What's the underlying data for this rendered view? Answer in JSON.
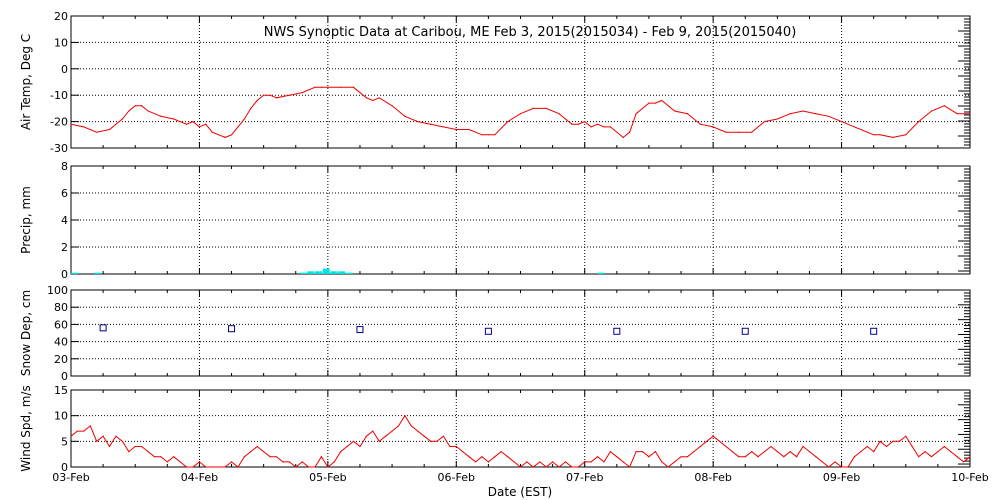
{
  "chart_data": {
    "type": "line",
    "title": "NWS Synoptic Data at Caribou, ME   Feb  3, 2015(2015034) - Feb  9, 2015(2015040)",
    "xlabel": "Date (EST)",
    "x_ticks": [
      "03-Feb",
      "04-Feb",
      "05-Feb",
      "06-Feb",
      "07-Feb",
      "08-Feb",
      "09-Feb",
      "10-Feb"
    ],
    "x_range_days": [
      0,
      7
    ],
    "colors": {
      "air_temp": "#ee0000",
      "precip": "#00e5e5",
      "snow": "#00008b",
      "wind": "#ee0000",
      "grid": "#000000"
    },
    "panels": [
      {
        "id": "air_temp",
        "ylabel": "Air Temp, Deg C",
        "ylim": [
          -30,
          20
        ],
        "yticks": [
          "20",
          "10",
          "0",
          "-10",
          "-20",
          "-30"
        ],
        "series": {
          "name": "Air Temp",
          "x": [
            0,
            0.1,
            0.2,
            0.3,
            0.4,
            0.45,
            0.5,
            0.55,
            0.6,
            0.7,
            0.8,
            0.9,
            0.95,
            1.0,
            1.05,
            1.1,
            1.15,
            1.2,
            1.25,
            1.3,
            1.35,
            1.4,
            1.45,
            1.5,
            1.55,
            1.6,
            1.7,
            1.8,
            1.85,
            1.9,
            1.95,
            2.0,
            2.1,
            2.2,
            2.3,
            2.35,
            2.4,
            2.5,
            2.6,
            2.7,
            2.8,
            2.9,
            3.0,
            3.1,
            3.2,
            3.25,
            3.3,
            3.4,
            3.5,
            3.6,
            3.7,
            3.8,
            3.85,
            3.9,
            3.95,
            4.0,
            4.05,
            4.1,
            4.15,
            4.2,
            4.3,
            4.35,
            4.4,
            4.5,
            4.55,
            4.6,
            4.7,
            4.8,
            4.9,
            5.0,
            5.1,
            5.2,
            5.3,
            5.4,
            5.5,
            5.6,
            5.7,
            5.8,
            5.9,
            6.0,
            6.1,
            6.2,
            6.25,
            6.3,
            6.4,
            6.5,
            6.6,
            6.7,
            6.8,
            6.9,
            7.0
          ],
          "values": [
            -21,
            -22,
            -24,
            -23,
            -19,
            -16,
            -14,
            -14,
            -16,
            -18,
            -19,
            -21,
            -20,
            -22,
            -21,
            -24,
            -25,
            -26,
            -25,
            -22,
            -19,
            -15,
            -12,
            -10,
            -10,
            -11,
            -10,
            -9,
            -8,
            -7,
            -7,
            -7,
            -7,
            -7,
            -11,
            -12,
            -11,
            -14,
            -18,
            -20,
            -21,
            -22,
            -23,
            -23,
            -25,
            -25,
            -25,
            -20,
            -17,
            -15,
            -15,
            -17,
            -19,
            -21,
            -21,
            -20,
            -22,
            -21,
            -22,
            -22,
            -26,
            -24,
            -17,
            -13,
            -13,
            -12,
            -16,
            -17,
            -21,
            -22,
            -24,
            -24,
            -24,
            -20,
            -19,
            -17,
            -16,
            -17,
            -18,
            -20,
            -22,
            -24,
            -25,
            -25,
            -26,
            -25,
            -20,
            -16,
            -14,
            -17,
            -17
          ]
        }
      },
      {
        "id": "precip",
        "ylabel": "Precip, mm",
        "ylim": [
          0,
          8
        ],
        "yticks": [
          "8",
          "6",
          "4",
          "2",
          "0"
        ],
        "series": {
          "name": "Precip",
          "x": [
            0.0,
            0.18,
            1.78,
            1.84,
            1.9,
            1.96,
            2.02,
            2.08,
            2.14,
            4.1
          ],
          "values": [
            0.1,
            0.1,
            0.1,
            0.2,
            0.2,
            0.4,
            0.2,
            0.2,
            0.1,
            0.1
          ]
        }
      },
      {
        "id": "snow_depth",
        "ylabel": "Snow Dep, cm",
        "ylim": [
          0,
          100
        ],
        "yticks": [
          "100",
          "80",
          "60",
          "40",
          "20",
          "0"
        ],
        "series": {
          "name": "Snow Depth",
          "x": [
            0.25,
            1.25,
            2.25,
            3.25,
            4.25,
            5.25,
            6.25
          ],
          "values": [
            56,
            55,
            54,
            52,
            52,
            52,
            52
          ]
        }
      },
      {
        "id": "wind",
        "ylabel": "Wind Spd, m/s",
        "ylim": [
          0,
          15
        ],
        "yticks": [
          "15",
          "10",
          "5",
          "0"
        ],
        "series": {
          "name": "Wind Speed",
          "x": [
            0,
            0.05,
            0.1,
            0.15,
            0.2,
            0.25,
            0.3,
            0.35,
            0.4,
            0.45,
            0.5,
            0.55,
            0.6,
            0.65,
            0.7,
            0.75,
            0.8,
            0.85,
            0.9,
            0.95,
            1.0,
            1.05,
            1.1,
            1.15,
            1.2,
            1.25,
            1.3,
            1.35,
            1.4,
            1.45,
            1.5,
            1.55,
            1.6,
            1.65,
            1.7,
            1.75,
            1.8,
            1.85,
            1.9,
            1.95,
            2.0,
            2.05,
            2.1,
            2.15,
            2.2,
            2.25,
            2.3,
            2.35,
            2.4,
            2.45,
            2.5,
            2.55,
            2.6,
            2.65,
            2.7,
            2.75,
            2.8,
            2.85,
            2.9,
            2.95,
            3.0,
            3.05,
            3.1,
            3.15,
            3.2,
            3.25,
            3.3,
            3.35,
            3.4,
            3.45,
            3.5,
            3.55,
            3.6,
            3.65,
            3.7,
            3.75,
            3.8,
            3.85,
            3.9,
            3.95,
            4.0,
            4.05,
            4.1,
            4.15,
            4.2,
            4.25,
            4.3,
            4.35,
            4.4,
            4.45,
            4.5,
            4.55,
            4.6,
            4.65,
            4.7,
            4.75,
            4.8,
            4.85,
            4.9,
            4.95,
            5.0,
            5.05,
            5.1,
            5.15,
            5.2,
            5.25,
            5.3,
            5.35,
            5.4,
            5.45,
            5.5,
            5.55,
            5.6,
            5.65,
            5.7,
            5.75,
            5.8,
            5.85,
            5.9,
            5.95,
            6.0,
            6.05,
            6.1,
            6.15,
            6.2,
            6.25,
            6.3,
            6.35,
            6.4,
            6.45,
            6.5,
            6.55,
            6.6,
            6.65,
            6.7,
            6.75,
            6.8,
            6.85,
            6.9,
            6.95,
            7.0
          ],
          "values": [
            6,
            7,
            7,
            8,
            5,
            6,
            4,
            6,
            5,
            3,
            4,
            4,
            3,
            2,
            2,
            1,
            2,
            1,
            0,
            0,
            1,
            0,
            0,
            0,
            0,
            1,
            0,
            2,
            3,
            4,
            3,
            2,
            2,
            1,
            1,
            0,
            1,
            0,
            0,
            2,
            0,
            1,
            3,
            4,
            5,
            4,
            6,
            7,
            5,
            6,
            7,
            8,
            10,
            8,
            7,
            6,
            5,
            5,
            6,
            4,
            4,
            3,
            2,
            1,
            2,
            1,
            2,
            3,
            2,
            1,
            0,
            1,
            0,
            1,
            0,
            1,
            0,
            1,
            0,
            0,
            1,
            1,
            2,
            1,
            3,
            2,
            1,
            0,
            3,
            3,
            2,
            3,
            1,
            0,
            1,
            2,
            2,
            3,
            4,
            5,
            6,
            5,
            4,
            3,
            2,
            2,
            3,
            2,
            3,
            4,
            3,
            2,
            3,
            2,
            4,
            3,
            2,
            1,
            0,
            1,
            0,
            0,
            2,
            3,
            4,
            3,
            5,
            4,
            5,
            5,
            6,
            4,
            2,
            3,
            2,
            3,
            4,
            3,
            2,
            1,
            2
          ]
        }
      }
    ]
  }
}
